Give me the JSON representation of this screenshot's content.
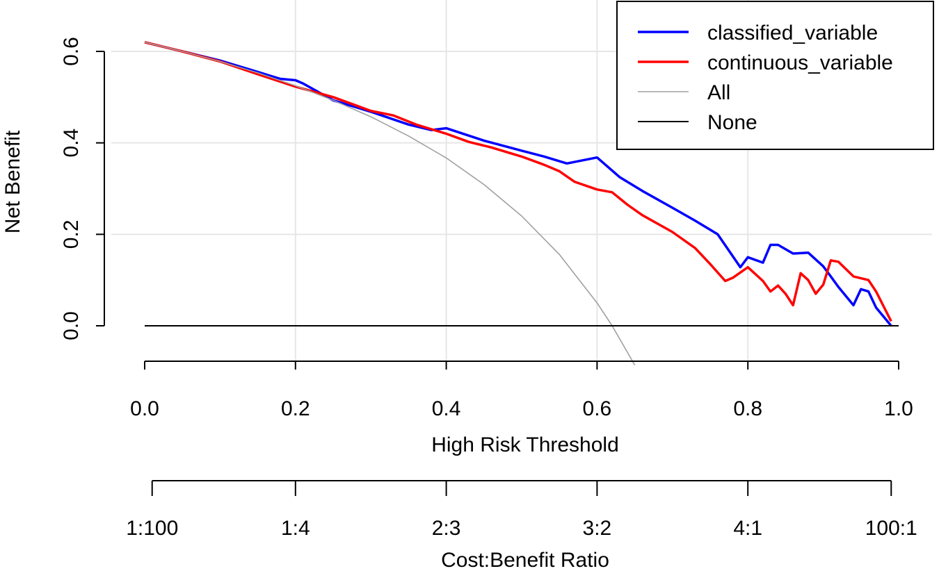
{
  "chart_data": {
    "type": "line",
    "xlabel": "High Risk Threshold",
    "ylabel": "Net Benefit",
    "xlim": [
      0,
      1
    ],
    "ylim": [
      -0.08,
      0.66
    ],
    "xticks": [
      0.0,
      0.2,
      0.4,
      0.6,
      0.8,
      1.0
    ],
    "xtick_labels": [
      "0.0",
      "0.2",
      "0.4",
      "0.6",
      "0.8",
      "1.0"
    ],
    "yticks": [
      0.0,
      0.2,
      0.4,
      0.6
    ],
    "ytick_labels": [
      "0.0",
      "0.2",
      "0.4",
      "0.6"
    ],
    "secondary_axis": {
      "label": "Cost:Benefit Ratio",
      "tick_positions": [
        0.0099,
        0.2,
        0.4,
        0.6,
        0.8,
        0.9901
      ],
      "tick_labels": [
        "1:100",
        "1:4",
        "2:3",
        "3:2",
        "4:1",
        "100:1"
      ]
    },
    "grid": true,
    "legend_position": "top-right",
    "series": [
      {
        "name": "classified_variable",
        "color": "#0000ff",
        "x": [
          0.0,
          0.05,
          0.1,
          0.15,
          0.18,
          0.2,
          0.21,
          0.25,
          0.3,
          0.35,
          0.38,
          0.4,
          0.45,
          0.5,
          0.53,
          0.56,
          0.6,
          0.63,
          0.66,
          0.7,
          0.73,
          0.76,
          0.79,
          0.8,
          0.82,
          0.83,
          0.84,
          0.86,
          0.88,
          0.9,
          0.91,
          0.92,
          0.94,
          0.95,
          0.96,
          0.97,
          0.99
        ],
        "y": [
          0.62,
          0.6,
          0.58,
          0.555,
          0.54,
          0.537,
          0.53,
          0.493,
          0.468,
          0.44,
          0.428,
          0.432,
          0.405,
          0.383,
          0.37,
          0.355,
          0.368,
          0.325,
          0.295,
          0.258,
          0.23,
          0.2,
          0.128,
          0.15,
          0.138,
          0.177,
          0.177,
          0.158,
          0.16,
          0.13,
          0.108,
          0.085,
          0.045,
          0.08,
          0.075,
          0.04,
          0.0
        ]
      },
      {
        "name": "continuous_variable",
        "color": "#ff0000",
        "x": [
          0.0,
          0.05,
          0.1,
          0.15,
          0.2,
          0.25,
          0.3,
          0.33,
          0.36,
          0.4,
          0.43,
          0.46,
          0.5,
          0.53,
          0.55,
          0.57,
          0.6,
          0.62,
          0.64,
          0.66,
          0.7,
          0.73,
          0.75,
          0.77,
          0.78,
          0.8,
          0.82,
          0.83,
          0.84,
          0.85,
          0.86,
          0.87,
          0.88,
          0.89,
          0.9,
          0.91,
          0.92,
          0.94,
          0.96,
          0.97,
          0.99
        ],
        "y": [
          0.62,
          0.6,
          0.578,
          0.55,
          0.523,
          0.5,
          0.47,
          0.46,
          0.44,
          0.42,
          0.402,
          0.39,
          0.37,
          0.352,
          0.338,
          0.315,
          0.298,
          0.292,
          0.265,
          0.242,
          0.205,
          0.17,
          0.135,
          0.098,
          0.105,
          0.128,
          0.098,
          0.075,
          0.088,
          0.07,
          0.045,
          0.115,
          0.1,
          0.07,
          0.09,
          0.143,
          0.14,
          0.108,
          0.1,
          0.075,
          0.01
        ]
      },
      {
        "name": "All",
        "color": "#a0a0a0",
        "x": [
          0.0,
          0.05,
          0.1,
          0.15,
          0.2,
          0.25,
          0.3,
          0.35,
          0.4,
          0.45,
          0.5,
          0.55,
          0.6,
          0.62,
          0.65
        ],
        "y": [
          0.62,
          0.6,
          0.578,
          0.553,
          0.525,
          0.493,
          0.457,
          0.415,
          0.367,
          0.309,
          0.24,
          0.156,
          0.05,
          0.0,
          -0.086
        ]
      },
      {
        "name": "None",
        "color": "#000000",
        "x": [
          0.0,
          1.0
        ],
        "y": [
          0.0,
          0.0
        ]
      }
    ]
  }
}
